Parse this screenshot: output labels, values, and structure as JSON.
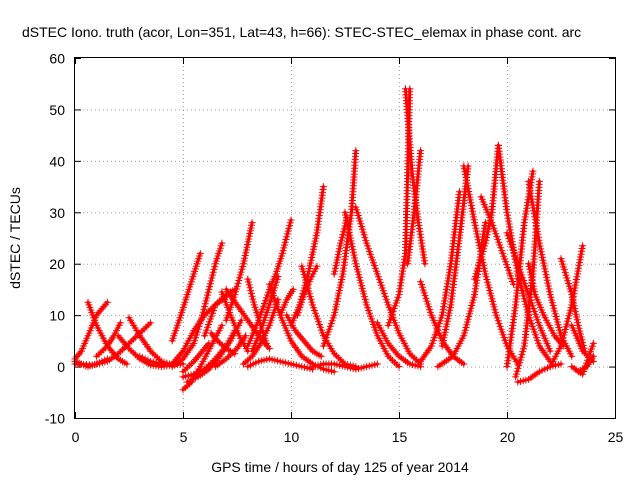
{
  "chart_data": {
    "type": "scatter",
    "title": "dSTEC Iono. truth (acor, Lon=351, Lat=43, h=66): STEC-STEC_elemax in phase cont. arc",
    "xlabel": "GPS time / hours of day 125 of year 2014",
    "ylabel": "dSTEC  / TECUs",
    "xlim": [
      0,
      25
    ],
    "ylim": [
      -10,
      60
    ],
    "xticks": [
      0,
      5,
      10,
      15,
      20,
      25
    ],
    "yticks": [
      -10,
      0,
      10,
      20,
      30,
      40,
      50,
      60
    ],
    "xtick_labels": [
      "0",
      "5",
      "10",
      "15",
      "20",
      "25"
    ],
    "ytick_labels": [
      "-10",
      "0",
      "10",
      "20",
      "30",
      "40",
      "50",
      "60"
    ],
    "grid": true,
    "legend": "none",
    "marker": "+",
    "series_color": "#ff0000",
    "series": [
      {
        "x": [
          0.0,
          0.3,
          0.6,
          1.0,
          1.5
        ],
        "y": [
          1.0,
          0.5,
          0.0,
          0.5,
          1.5
        ]
      },
      {
        "x": [
          0.0,
          0.3,
          0.6,
          1.0,
          1.5
        ],
        "y": [
          1.5,
          3.0,
          6.0,
          10.0,
          12.5
        ]
      },
      {
        "x": [
          0.6,
          1.0,
          1.5,
          2.0,
          2.4
        ],
        "y": [
          12.5,
          8.0,
          4.0,
          1.5,
          0.5
        ]
      },
      {
        "x": [
          0.0,
          0.8,
          1.5,
          2.0,
          2.5,
          3.0,
          3.5
        ],
        "y": [
          0.5,
          0.3,
          1.0,
          2.5,
          4.5,
          6.5,
          8.5
        ]
      },
      {
        "x": [
          1.0,
          1.5,
          1.8,
          2.1
        ],
        "y": [
          2.0,
          4.0,
          6.0,
          8.5
        ]
      },
      {
        "x": [
          2.5,
          3.0,
          3.5,
          4.0,
          4.5,
          5.0
        ],
        "y": [
          9.5,
          6.0,
          3.0,
          1.0,
          0.3,
          0.5
        ]
      },
      {
        "x": [
          2.0,
          2.5,
          3.0,
          3.5,
          4.0,
          4.5
        ],
        "y": [
          6.0,
          3.5,
          1.5,
          0.3,
          0.0,
          0.3
        ]
      },
      {
        "x": [
          3.0,
          3.5,
          4.0,
          4.5
        ],
        "y": [
          2.0,
          1.0,
          0.5,
          0.5
        ]
      },
      {
        "x": [
          4.5,
          5.0,
          5.5,
          6.0,
          6.5,
          7.0
        ],
        "y": [
          0.5,
          3.0,
          7.0,
          10.0,
          12.0,
          13.5
        ]
      },
      {
        "x": [
          5.0,
          5.5,
          5.8,
          6.2
        ],
        "y": [
          -1.0,
          1.0,
          2.5,
          4.5
        ]
      },
      {
        "x": [
          4.5,
          4.9,
          5.2,
          5.5,
          5.8
        ],
        "y": [
          5.0,
          10.0,
          14.0,
          18.0,
          22.0
        ]
      },
      {
        "x": [
          5.0,
          5.4,
          5.8,
          6.3,
          6.8
        ],
        "y": [
          -4.5,
          -3.0,
          0.0,
          4.0,
          8.0
        ]
      },
      {
        "x": [
          4.5,
          5.0,
          5.5,
          5.9,
          6.2,
          6.5,
          6.8
        ],
        "y": [
          0.0,
          1.5,
          4.5,
          10.0,
          15.0,
          20.0,
          24.0
        ]
      },
      {
        "x": [
          5.2,
          5.7,
          6.2,
          6.7,
          7.2,
          7.7
        ],
        "y": [
          -3.0,
          -2.0,
          -0.5,
          2.0,
          5.0,
          9.0
        ]
      },
      {
        "x": [
          6.5,
          7.0,
          7.5,
          7.9
        ],
        "y": [
          0.0,
          1.5,
          3.5,
          6.0
        ]
      },
      {
        "x": [
          5.0,
          5.5,
          6.0,
          6.5,
          7.0,
          7.4
        ],
        "y": [
          -2.0,
          -1.5,
          -0.5,
          1.5,
          4.0,
          7.0
        ]
      },
      {
        "x": [
          6.8,
          7.2,
          7.6,
          8.0
        ],
        "y": [
          14.5,
          10.0,
          6.0,
          3.0
        ]
      },
      {
        "x": [
          6.3,
          6.6,
          7.0,
          7.4
        ],
        "y": [
          6.5,
          5.0,
          3.5,
          2.5
        ]
      },
      {
        "x": [
          7.0,
          7.4,
          7.8,
          8.2
        ],
        "y": [
          9.0,
          14.0,
          20.0,
          28.0
        ]
      },
      {
        "x": [
          6.0,
          6.5,
          7.0,
          7.4
        ],
        "y": [
          6.0,
          12.0,
          14.0,
          15.0
        ]
      },
      {
        "x": [
          7.0,
          7.5,
          8.0,
          8.5,
          9.0
        ],
        "y": [
          15.0,
          12.0,
          9.0,
          6.0,
          3.5
        ]
      },
      {
        "x": [
          8.0,
          8.3,
          8.6,
          8.9
        ],
        "y": [
          17.0,
          12.0,
          8.0,
          4.0
        ]
      },
      {
        "x": [
          8.0,
          8.5,
          9.0,
          9.5,
          10.0,
          10.5,
          11.0
        ],
        "y": [
          0.0,
          1.0,
          1.5,
          1.0,
          0.5,
          0.0,
          -0.5
        ]
      },
      {
        "x": [
          8.0,
          8.5,
          9.0,
          9.3,
          9.6,
          10.0
        ],
        "y": [
          4.0,
          9.0,
          15.0,
          18.0,
          22.0,
          28.5
        ]
      },
      {
        "x": [
          8.2,
          8.6,
          9.0,
          9.4
        ],
        "y": [
          3.0,
          7.0,
          12.0,
          17.5
        ]
      },
      {
        "x": [
          7.8,
          8.2,
          8.6,
          9.0,
          9.4
        ],
        "y": [
          0.5,
          2.0,
          4.5,
          8.0,
          13.0
        ]
      },
      {
        "x": [
          9.0,
          9.5,
          10.0,
          10.5,
          11.0,
          11.5,
          12.0
        ],
        "y": [
          16.0,
          10.0,
          5.0,
          2.0,
          0.5,
          -0.5,
          -1.0
        ]
      },
      {
        "x": [
          9.5,
          9.8,
          10.1
        ],
        "y": [
          10.0,
          13.0,
          15.0
        ]
      },
      {
        "x": [
          9.8,
          10.2,
          10.6,
          11.0,
          11.4
        ],
        "y": [
          10.0,
          7.0,
          5.0,
          3.0,
          2.0
        ]
      },
      {
        "x": [
          10.0,
          10.4,
          10.8,
          11.2,
          11.5
        ],
        "y": [
          8.0,
          12.0,
          18.0,
          26.0,
          35.0
        ]
      },
      {
        "x": [
          10.3,
          10.6,
          10.9,
          11.2
        ],
        "y": [
          10.0,
          14.0,
          17.0,
          19.5
        ]
      },
      {
        "x": [
          10.5,
          11.0,
          11.5,
          12.0,
          12.5,
          13.0
        ],
        "y": [
          19.5,
          12.0,
          6.0,
          2.5,
          0.5,
          0.0
        ]
      },
      {
        "x": [
          11.0,
          11.5,
          12.0,
          12.5,
          13.0,
          13.5,
          14.0
        ],
        "y": [
          0.0,
          0.5,
          0.5,
          0.0,
          -0.5,
          0.0,
          0.5
        ]
      },
      {
        "x": [
          11.5,
          12.0,
          12.4,
          12.8,
          13.0
        ],
        "y": [
          4.0,
          10.0,
          18.0,
          30.0,
          42.0
        ]
      },
      {
        "x": [
          12.0,
          12.3,
          12.6
        ],
        "y": [
          18.0,
          24.0,
          29.0
        ]
      },
      {
        "x": [
          12.5,
          13.0,
          13.5,
          14.0,
          14.5,
          15.0
        ],
        "y": [
          30.0,
          20.0,
          12.0,
          6.0,
          2.0,
          0.0
        ]
      },
      {
        "x": [
          13.0,
          13.5,
          14.0,
          14.5,
          15.0,
          15.5,
          16.0
        ],
        "y": [
          31.0,
          24.0,
          18.0,
          12.0,
          6.5,
          2.5,
          0.5
        ]
      },
      {
        "x": [
          14.0,
          14.5,
          15.0,
          15.5,
          16.0
        ],
        "y": [
          8.5,
          4.5,
          2.0,
          0.5,
          0.0
        ]
      },
      {
        "x": [
          14.5,
          15.0,
          15.3,
          15.5
        ],
        "y": [
          8.0,
          14.0,
          22.0,
          54.0
        ]
      },
      {
        "x": [
          15.3,
          15.6,
          15.9,
          16.2
        ],
        "y": [
          54.0,
          38.0,
          28.0,
          20.0
        ]
      },
      {
        "x": [
          15.4,
          15.7,
          16.0
        ],
        "y": [
          20.0,
          30.0,
          42.0
        ]
      },
      {
        "x": [
          16.0,
          16.5,
          17.0,
          17.5,
          18.0
        ],
        "y": [
          16.5,
          10.0,
          5.0,
          2.0,
          0.5
        ]
      },
      {
        "x": [
          16.0,
          16.5,
          17.0,
          17.4,
          17.8
        ],
        "y": [
          1.0,
          4.0,
          10.0,
          20.0,
          34.0
        ]
      },
      {
        "x": [
          17.0,
          17.4,
          17.8,
          18.2
        ],
        "y": [
          4.0,
          12.0,
          25.0,
          39.0
        ]
      },
      {
        "x": [
          18.0,
          18.5,
          19.0,
          19.5,
          20.0,
          20.5
        ],
        "y": [
          39.0,
          28.0,
          18.0,
          10.0,
          4.0,
          0.5
        ]
      },
      {
        "x": [
          16.8,
          17.5,
          18.0,
          18.5,
          19.0
        ],
        "y": [
          0.0,
          2.0,
          6.0,
          14.0,
          28.0
        ]
      },
      {
        "x": [
          18.5,
          19.0,
          19.3,
          19.6
        ],
        "y": [
          17.0,
          24.0,
          30.0,
          43.0
        ]
      },
      {
        "x": [
          18.8,
          19.3,
          19.8,
          20.3
        ],
        "y": [
          33.0,
          28.0,
          22.0,
          16.0
        ]
      },
      {
        "x": [
          19.6,
          20.0,
          20.5,
          21.0,
          21.5,
          22.0
        ],
        "y": [
          43.0,
          30.0,
          18.0,
          10.0,
          4.0,
          1.0
        ]
      },
      {
        "x": [
          20.0,
          20.5,
          21.0,
          21.5,
          22.0
        ],
        "y": [
          26.0,
          20.0,
          14.0,
          8.0,
          3.0
        ]
      },
      {
        "x": [
          20.0,
          20.4,
          20.8,
          21.2
        ],
        "y": [
          0.0,
          12.0,
          28.0,
          38.0
        ]
      },
      {
        "x": [
          20.4,
          20.8,
          21.2,
          21.5
        ],
        "y": [
          -2.0,
          4.0,
          18.0,
          36.0
        ]
      },
      {
        "x": [
          21.0,
          21.5,
          22.0,
          22.5,
          23.0
        ],
        "y": [
          36.0,
          24.0,
          14.0,
          6.0,
          2.0
        ]
      },
      {
        "x": [
          21.0,
          21.3,
          21.7,
          22.2,
          22.6
        ],
        "y": [
          20.0,
          14.0,
          10.0,
          6.0,
          4.0
        ]
      },
      {
        "x": [
          20.5,
          21.0,
          21.5,
          22.0,
          22.5
        ],
        "y": [
          -3.0,
          -2.5,
          -1.0,
          0.0,
          0.5
        ]
      },
      {
        "x": [
          22.5,
          23.0,
          23.3,
          23.6
        ],
        "y": [
          21.0,
          14.0,
          8.0,
          3.0
        ]
      },
      {
        "x": [
          22.0,
          22.5,
          23.0,
          23.5
        ],
        "y": [
          0.0,
          4.0,
          12.0,
          23.5
        ]
      },
      {
        "x": [
          23.0,
          23.5,
          24.0
        ],
        "y": [
          8.0,
          3.0,
          1.0
        ]
      },
      {
        "x": [
          23.0,
          23.5,
          24.0
        ],
        "y": [
          0.0,
          -1.5,
          4.5
        ]
      },
      {
        "x": [
          23.3,
          23.7,
          24.0
        ],
        "y": [
          -1.0,
          0.0,
          2.0
        ]
      }
    ]
  }
}
